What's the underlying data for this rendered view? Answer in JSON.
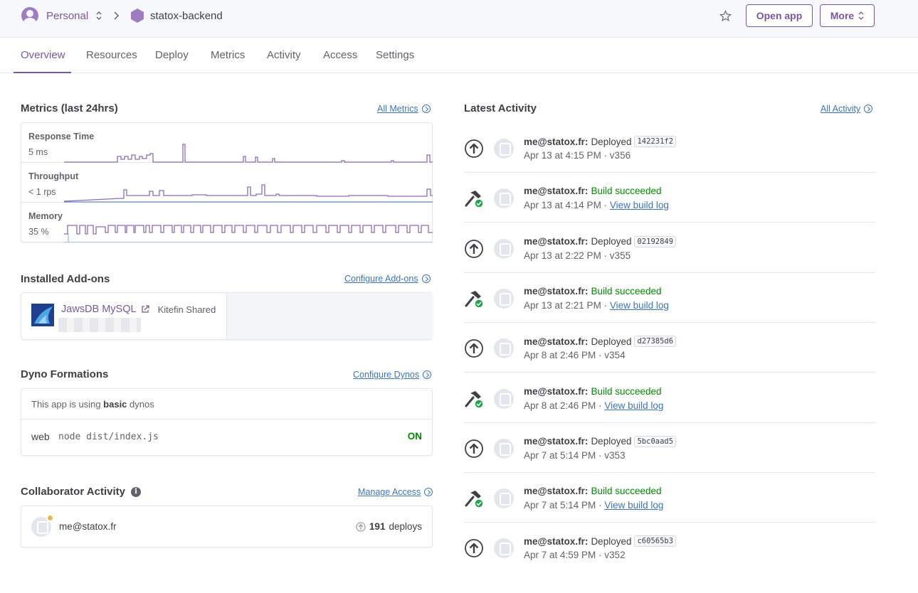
{
  "breadcrumb": {
    "team": "Personal",
    "app": "statox-backend"
  },
  "header": {
    "open_app": "Open app",
    "more": "More"
  },
  "tabs": [
    "Overview",
    "Resources",
    "Deploy",
    "Metrics",
    "Activity",
    "Access",
    "Settings"
  ],
  "metrics": {
    "title": "Metrics (last 24hrs)",
    "link": "All Metrics",
    "rows": [
      {
        "label": "Response Time",
        "value": "5 ms"
      },
      {
        "label": "Throughput",
        "value": "< 1 rps"
      },
      {
        "label": "Memory",
        "value": "35 %"
      }
    ]
  },
  "addons": {
    "title": "Installed Add-ons",
    "link": "Configure Add-ons",
    "name": "JawsDB MySQL",
    "plan": "Kitefin Shared"
  },
  "dynos": {
    "title": "Dyno Formations",
    "link": "Configure Dynos",
    "info_prefix": "This app is using ",
    "info_bold": "basic",
    "info_suffix": " dynos",
    "type": "web",
    "command": "node dist/index.js",
    "state": "ON"
  },
  "collab": {
    "title": "Collaborator Activity",
    "link": "Manage Access",
    "user": "me@statox.fr",
    "count": "191",
    "count_label": "deploys"
  },
  "activity": {
    "title": "Latest Activity",
    "link": "All Activity",
    "items": [
      {
        "kind": "deploy",
        "who": "me@statox.fr:",
        "action": "Deployed",
        "sha": "142231f2",
        "date": "Apr 13 at 4:15 PM · v356"
      },
      {
        "kind": "build",
        "who": "me@statox.fr:",
        "action": "Build succeeded",
        "date": "Apr 13 at 4:14 PM · ",
        "link": "View build log"
      },
      {
        "kind": "deploy",
        "who": "me@statox.fr:",
        "action": "Deployed",
        "sha": "02192849",
        "date": "Apr 13 at 2:22 PM · v355"
      },
      {
        "kind": "build",
        "who": "me@statox.fr:",
        "action": "Build succeeded",
        "date": "Apr 13 at 2:21 PM · ",
        "link": "View build log"
      },
      {
        "kind": "deploy",
        "who": "me@statox.fr:",
        "action": "Deployed",
        "sha": "d27385d6",
        "date": "Apr 8 at 2:46 PM · v354"
      },
      {
        "kind": "build",
        "who": "me@statox.fr:",
        "action": "Build succeeded",
        "date": "Apr 8 at 2:46 PM · ",
        "link": "View build log"
      },
      {
        "kind": "deploy",
        "who": "me@statox.fr:",
        "action": "Deployed",
        "sha": "5bc0aad5",
        "date": "Apr 7 at 5:14 PM · v353"
      },
      {
        "kind": "build",
        "who": "me@statox.fr:",
        "action": "Build succeeded",
        "date": "Apr 7 at 5:14 PM · ",
        "link": "View build log"
      },
      {
        "kind": "deploy",
        "who": "me@statox.fr:",
        "action": "Deployed",
        "sha": "c60565b3",
        "date": "Apr 7 at 4:59 PM · v352"
      }
    ]
  },
  "colors": {
    "accent": "#79589f",
    "link": "#3d74c0",
    "success": "#008a00"
  }
}
